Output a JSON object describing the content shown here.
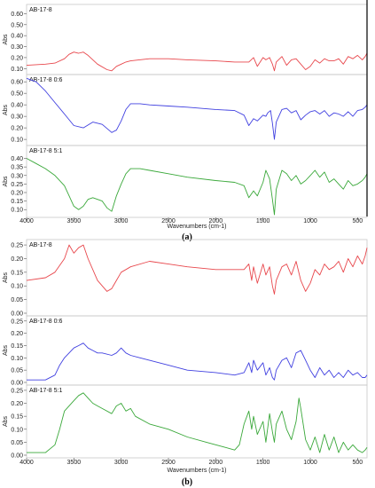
{
  "chart_data": [
    {
      "type": "line",
      "caption": "(a)",
      "xlabel": "Wavenumbers (cm-1)",
      "xlim": [
        4000,
        400
      ],
      "x_ticks": [
        4000,
        3500,
        3000,
        2500,
        2000,
        1500,
        1000,
        500
      ],
      "reverse_x": true,
      "panels": [
        {
          "name": "AB-17-8",
          "ylabel": "Abs",
          "color": "#e8474c",
          "ylim": [
            0.07,
            0.66
          ],
          "y_ticks": [
            "0.10",
            "0.20",
            "0.30",
            "0.40",
            "0.50",
            "0.60"
          ],
          "x": [
            4000,
            3800,
            3700,
            3600,
            3550,
            3500,
            3450,
            3400,
            3350,
            3250,
            3150,
            3100,
            3050,
            3000,
            2950,
            2900,
            2700,
            2500,
            2300,
            2000,
            1800,
            1700,
            1650,
            1600,
            1560,
            1500,
            1470,
            1430,
            1400,
            1380,
            1360,
            1300,
            1250,
            1200,
            1150,
            1100,
            1050,
            1000,
            950,
            900,
            850,
            800,
            750,
            700,
            650,
            600,
            550,
            500,
            450,
            420,
            400
          ],
          "y": [
            0.13,
            0.14,
            0.15,
            0.19,
            0.23,
            0.25,
            0.24,
            0.25,
            0.22,
            0.14,
            0.09,
            0.08,
            0.12,
            0.14,
            0.16,
            0.17,
            0.19,
            0.19,
            0.18,
            0.17,
            0.16,
            0.16,
            0.16,
            0.2,
            0.12,
            0.2,
            0.18,
            0.2,
            0.14,
            0.08,
            0.16,
            0.21,
            0.13,
            0.18,
            0.19,
            0.14,
            0.09,
            0.12,
            0.18,
            0.15,
            0.19,
            0.17,
            0.17,
            0.19,
            0.14,
            0.21,
            0.19,
            0.22,
            0.18,
            0.21,
            0.24
          ]
        },
        {
          "name": "AB-17-8 0:6",
          "ylabel": "Abs",
          "color": "#4040e0",
          "ylim": [
            0.07,
            0.64
          ],
          "y_ticks": [
            "0.10",
            "0.20",
            "0.30",
            "0.40",
            "0.50",
            "0.60"
          ],
          "x": [
            4000,
            3900,
            3800,
            3700,
            3600,
            3500,
            3400,
            3300,
            3200,
            3100,
            3050,
            3000,
            2950,
            2900,
            2800,
            2700,
            2500,
            2300,
            2000,
            1800,
            1700,
            1650,
            1600,
            1560,
            1500,
            1470,
            1450,
            1420,
            1400,
            1380,
            1360,
            1300,
            1250,
            1200,
            1150,
            1100,
            1050,
            1000,
            950,
            900,
            850,
            800,
            750,
            700,
            650,
            600,
            550,
            500,
            450,
            420,
            400
          ],
          "y": [
            0.63,
            0.6,
            0.52,
            0.42,
            0.32,
            0.22,
            0.2,
            0.25,
            0.23,
            0.16,
            0.18,
            0.26,
            0.36,
            0.41,
            0.41,
            0.4,
            0.39,
            0.38,
            0.36,
            0.35,
            0.31,
            0.22,
            0.28,
            0.26,
            0.31,
            0.3,
            0.33,
            0.35,
            0.24,
            0.1,
            0.25,
            0.36,
            0.37,
            0.33,
            0.35,
            0.27,
            0.31,
            0.34,
            0.35,
            0.32,
            0.35,
            0.3,
            0.33,
            0.32,
            0.3,
            0.34,
            0.3,
            0.35,
            0.36,
            0.38,
            0.4
          ]
        },
        {
          "name": "AB-17-8 5:1",
          "ylabel": "Abs",
          "color": "#3aa83a",
          "ylim": [
            0.07,
            0.46
          ],
          "y_ticks": [
            "0.10",
            "0.15",
            "0.20",
            "0.25",
            "0.30",
            "0.35",
            "0.40"
          ],
          "x": [
            4000,
            3900,
            3800,
            3700,
            3600,
            3550,
            3500,
            3450,
            3400,
            3350,
            3300,
            3250,
            3200,
            3150,
            3100,
            3050,
            3000,
            2950,
            2900,
            2800,
            2700,
            2500,
            2300,
            2000,
            1800,
            1700,
            1650,
            1600,
            1560,
            1500,
            1470,
            1430,
            1400,
            1380,
            1360,
            1300,
            1250,
            1200,
            1150,
            1100,
            1050,
            1000,
            950,
            900,
            850,
            800,
            750,
            700,
            650,
            600,
            550,
            500,
            450,
            420,
            400
          ],
          "y": [
            0.4,
            0.37,
            0.34,
            0.3,
            0.24,
            0.18,
            0.12,
            0.1,
            0.12,
            0.16,
            0.17,
            0.16,
            0.15,
            0.11,
            0.09,
            0.18,
            0.25,
            0.31,
            0.34,
            0.34,
            0.33,
            0.31,
            0.29,
            0.27,
            0.26,
            0.24,
            0.17,
            0.21,
            0.18,
            0.26,
            0.33,
            0.28,
            0.16,
            0.07,
            0.22,
            0.33,
            0.31,
            0.27,
            0.3,
            0.25,
            0.27,
            0.3,
            0.33,
            0.29,
            0.32,
            0.26,
            0.28,
            0.25,
            0.22,
            0.27,
            0.24,
            0.25,
            0.27,
            0.29,
            0.31
          ]
        }
      ]
    },
    {
      "type": "line",
      "caption": "(b)",
      "xlabel": "Wavenumbers (cm-1)",
      "xlim": [
        4000,
        400
      ],
      "x_ticks": [
        4000,
        3500,
        3000,
        2500,
        2000,
        1500,
        1000,
        500
      ],
      "reverse_x": true,
      "panels": [
        {
          "name": "AB-17-8",
          "ylabel": "Abs",
          "color": "#e8474c",
          "ylim": [
            0.0,
            0.26
          ],
          "y_ticks": [
            "0.00",
            "0.05",
            "0.10",
            "0.15",
            "0.20",
            "0.25"
          ],
          "x": [
            4000,
            3800,
            3700,
            3600,
            3550,
            3500,
            3450,
            3400,
            3350,
            3250,
            3150,
            3100,
            3050,
            3000,
            2950,
            2900,
            2700,
            2500,
            2300,
            2000,
            1800,
            1700,
            1650,
            1620,
            1600,
            1560,
            1500,
            1470,
            1430,
            1400,
            1380,
            1360,
            1300,
            1250,
            1200,
            1150,
            1100,
            1050,
            1000,
            950,
            900,
            850,
            800,
            750,
            700,
            650,
            600,
            550,
            500,
            450,
            420,
            400
          ],
          "y": [
            0.12,
            0.13,
            0.15,
            0.2,
            0.25,
            0.22,
            0.24,
            0.25,
            0.2,
            0.12,
            0.08,
            0.09,
            0.12,
            0.15,
            0.16,
            0.17,
            0.19,
            0.18,
            0.17,
            0.16,
            0.16,
            0.16,
            0.18,
            0.12,
            0.17,
            0.11,
            0.18,
            0.14,
            0.17,
            0.1,
            0.07,
            0.12,
            0.17,
            0.18,
            0.14,
            0.19,
            0.12,
            0.08,
            0.11,
            0.16,
            0.14,
            0.18,
            0.16,
            0.17,
            0.19,
            0.15,
            0.2,
            0.17,
            0.21,
            0.18,
            0.21,
            0.24
          ]
        },
        {
          "name": "AB-17-8 0:6",
          "ylabel": "Abs",
          "color": "#4040e0",
          "ylim": [
            0.0,
            0.26
          ],
          "y_ticks": [
            "0.00",
            "0.05",
            "0.10",
            "0.15",
            "0.20",
            "0.25"
          ],
          "x": [
            4000,
            3800,
            3700,
            3650,
            3600,
            3500,
            3450,
            3400,
            3350,
            3300,
            3250,
            3200,
            3100,
            3050,
            3000,
            2950,
            2900,
            2800,
            2700,
            2500,
            2300,
            2000,
            1800,
            1700,
            1650,
            1620,
            1600,
            1560,
            1500,
            1470,
            1430,
            1400,
            1380,
            1360,
            1300,
            1250,
            1200,
            1150,
            1100,
            1050,
            1000,
            950,
            900,
            850,
            800,
            750,
            700,
            650,
            600,
            550,
            500,
            450,
            420,
            400
          ],
          "y": [
            0.01,
            0.01,
            0.03,
            0.07,
            0.1,
            0.14,
            0.15,
            0.16,
            0.14,
            0.13,
            0.12,
            0.12,
            0.11,
            0.12,
            0.14,
            0.12,
            0.11,
            0.1,
            0.09,
            0.07,
            0.05,
            0.04,
            0.03,
            0.04,
            0.08,
            0.04,
            0.09,
            0.05,
            0.08,
            0.03,
            0.06,
            0.02,
            0.01,
            0.05,
            0.09,
            0.1,
            0.06,
            0.12,
            0.13,
            0.09,
            0.05,
            0.02,
            0.06,
            0.03,
            0.05,
            0.02,
            0.04,
            0.02,
            0.05,
            0.03,
            0.04,
            0.02,
            0.02,
            0.03
          ]
        },
        {
          "name": "AB-17-8 5:1",
          "ylabel": "Abs",
          "color": "#3aa83a",
          "ylim": [
            0.0,
            0.26
          ],
          "y_ticks": [
            "0.00",
            "0.05",
            "0.10",
            "0.15",
            "0.20",
            "0.25"
          ],
          "x": [
            4000,
            3800,
            3700,
            3650,
            3600,
            3500,
            3450,
            3400,
            3350,
            3300,
            3250,
            3200,
            3100,
            3050,
            3000,
            2950,
            2900,
            2850,
            2700,
            2500,
            2300,
            2100,
            1900,
            1800,
            1750,
            1700,
            1650,
            1620,
            1600,
            1560,
            1500,
            1470,
            1430,
            1400,
            1380,
            1360,
            1300,
            1250,
            1200,
            1150,
            1120,
            1100,
            1050,
            1000,
            950,
            900,
            850,
            800,
            750,
            700,
            650,
            600,
            550,
            500,
            450,
            420,
            400
          ],
          "y": [
            0.01,
            0.01,
            0.04,
            0.1,
            0.17,
            0.21,
            0.23,
            0.24,
            0.22,
            0.2,
            0.19,
            0.18,
            0.16,
            0.19,
            0.2,
            0.17,
            0.18,
            0.15,
            0.12,
            0.1,
            0.07,
            0.05,
            0.03,
            0.02,
            0.04,
            0.12,
            0.17,
            0.1,
            0.15,
            0.08,
            0.13,
            0.05,
            0.16,
            0.09,
            0.05,
            0.12,
            0.17,
            0.1,
            0.06,
            0.13,
            0.22,
            0.18,
            0.06,
            0.02,
            0.07,
            0.01,
            0.08,
            0.02,
            0.07,
            0.01,
            0.05,
            0.02,
            0.04,
            0.02,
            0.01,
            0.02,
            0.03
          ]
        }
      ]
    }
  ]
}
